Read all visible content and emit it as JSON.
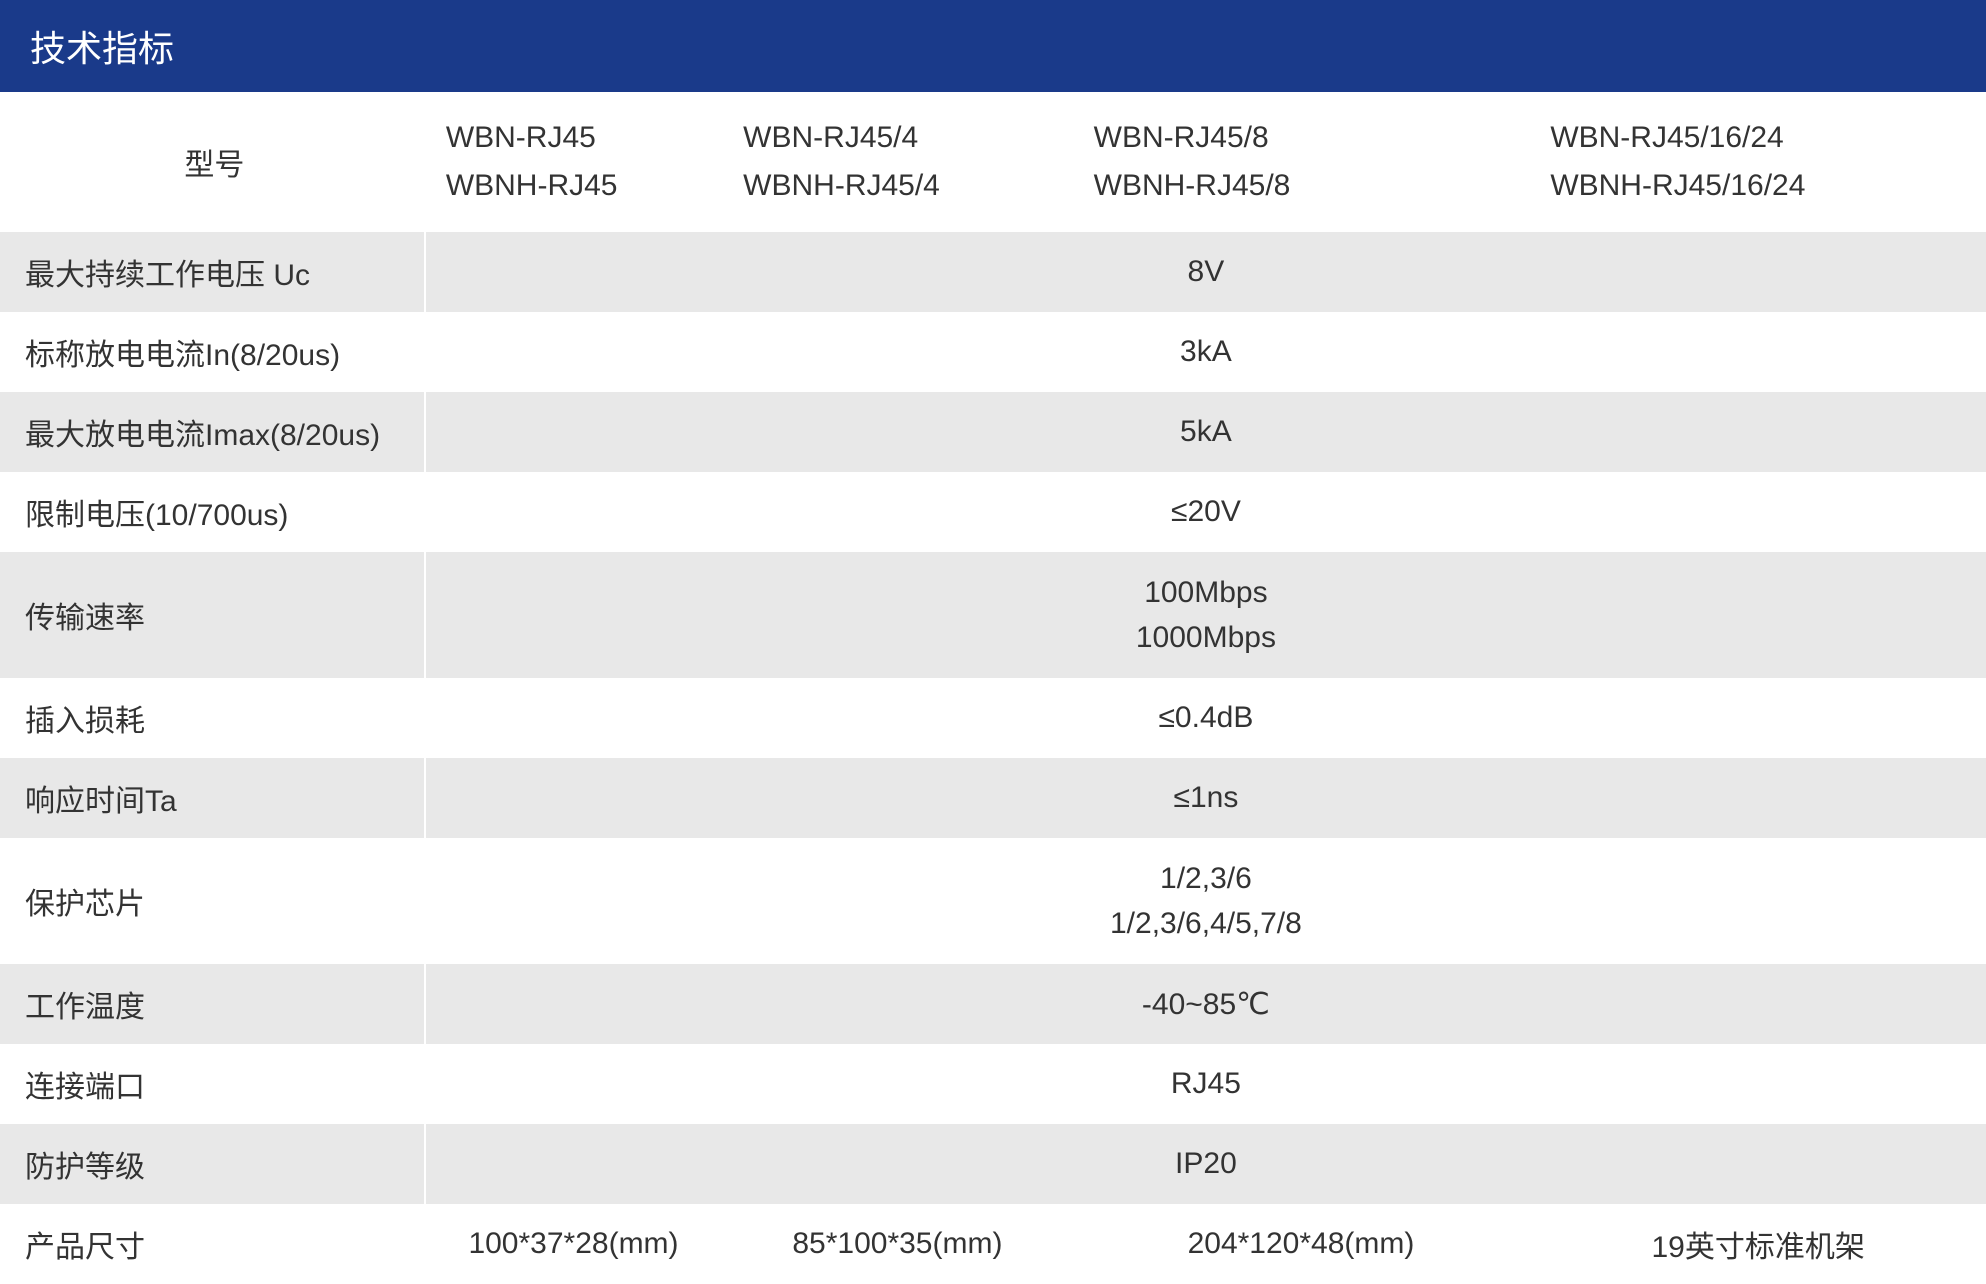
{
  "header": {
    "title": "技术指标"
  },
  "table": {
    "colors": {
      "header_bg": "#1a3a8a",
      "header_text": "#ffffff",
      "row_white": "#ffffff",
      "row_gray": "#e8e8e8",
      "text": "#333333",
      "border": "#ffffff"
    },
    "font_size": 30,
    "header_font_size": 36,
    "model_label": "型号",
    "models": {
      "col1_line1": "WBN-RJ45",
      "col1_line2": "WBNH-RJ45",
      "col2_line1": "WBN-RJ45/4",
      "col2_line2": "WBNH-RJ45/4",
      "col3_line1": "WBN-RJ45/8",
      "col3_line2": "WBNH-RJ45/8",
      "col4_line1": "WBN-RJ45/16/24",
      "col4_line2": "WBNH-RJ45/16/24"
    },
    "rows": {
      "uc": {
        "label": "最大持续工作电压 Uc",
        "value": "8V"
      },
      "in": {
        "label": "标称放电电流In(8/20us)",
        "value": "3kA"
      },
      "imax": {
        "label": "最大放电电流Imax(8/20us)",
        "value": "5kA"
      },
      "limit_voltage": {
        "label": "限制电压(10/700us)",
        "value": "≤20V"
      },
      "speed": {
        "label": "传输速率",
        "value_line1": "100Mbps",
        "value_line2": "1000Mbps"
      },
      "insertion_loss": {
        "label": "插入损耗",
        "value": "≤0.4dB"
      },
      "response_time": {
        "label": "响应时间Ta",
        "value": "≤1ns"
      },
      "protection_chip": {
        "label": "保护芯片",
        "value_line1": "1/2,3/6",
        "value_line2": "1/2,3/6,4/5,7/8"
      },
      "temperature": {
        "label": "工作温度",
        "value": "-40~85℃"
      },
      "port": {
        "label": "连接端口",
        "value": "RJ45"
      },
      "protection_level": {
        "label": "防护等级",
        "value": "IP20"
      },
      "dimensions": {
        "label": "产品尺寸",
        "val1": "100*37*28(mm)",
        "val2": "85*100*35(mm)",
        "val3": "204*120*48(mm)",
        "val4": "19英寸标准机架"
      }
    }
  }
}
